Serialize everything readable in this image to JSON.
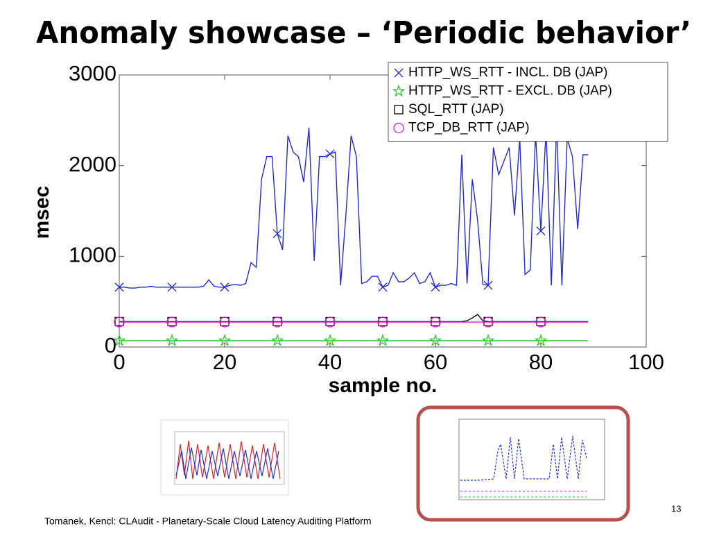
{
  "title": "Anomaly showcase – ‘Periodic behavior’",
  "footer": "Tomanek, Kencl: CLAudit - Planetary-Scale Cloud Latency Auditing Platform",
  "page_number": "13",
  "chart_data": {
    "type": "line",
    "xlabel": "sample no.",
    "ylabel": "msec",
    "xlim": [
      0,
      100
    ],
    "ylim": [
      0,
      3000
    ],
    "xticks": [
      0,
      20,
      40,
      60,
      80,
      100
    ],
    "yticks": [
      0,
      1000,
      2000,
      3000
    ],
    "legend": "upper right",
    "marker_every": 10,
    "x": [
      0,
      1,
      2,
      3,
      4,
      5,
      6,
      7,
      8,
      9,
      10,
      11,
      12,
      13,
      14,
      15,
      16,
      17,
      18,
      19,
      20,
      21,
      22,
      23,
      24,
      25,
      26,
      27,
      28,
      29,
      30,
      31,
      32,
      33,
      34,
      35,
      36,
      37,
      38,
      39,
      40,
      41,
      42,
      43,
      44,
      45,
      46,
      47,
      48,
      49,
      50,
      51,
      52,
      53,
      54,
      55,
      56,
      57,
      58,
      59,
      60,
      61,
      62,
      63,
      64,
      65,
      66,
      67,
      68,
      69,
      70,
      71,
      72,
      73,
      74,
      75,
      76,
      77,
      78,
      79,
      80,
      81,
      82,
      83,
      84,
      85,
      86,
      87,
      88,
      89
    ],
    "series": [
      {
        "name": "HTTP_WS_RTT - INCL. DB (JAP)",
        "color": "#1f2bd0",
        "marker": "x",
        "values": [
          660,
          660,
          650,
          650,
          660,
          660,
          670,
          660,
          660,
          660,
          660,
          660,
          660,
          660,
          660,
          660,
          670,
          740,
          670,
          660,
          660,
          680,
          690,
          680,
          700,
          930,
          880,
          1850,
          2100,
          2100,
          1250,
          1070,
          2330,
          2150,
          2100,
          1820,
          2420,
          950,
          2100,
          2100,
          2130,
          2150,
          680,
          1450,
          2330,
          2100,
          700,
          720,
          780,
          780,
          660,
          680,
          820,
          720,
          720,
          760,
          820,
          700,
          720,
          820,
          660,
          680,
          680,
          700,
          680,
          2120,
          700,
          1850,
          1400,
          690,
          680,
          2200,
          1900,
          2050,
          2200,
          1450,
          2300,
          800,
          850,
          2350,
          1280,
          2400,
          680,
          2450,
          680,
          2300,
          2100,
          1300,
          2120,
          2120
        ]
      },
      {
        "name": "HTTP_WS_RTT - EXCL. DB (JAP)",
        "color": "#22c02a",
        "marker": "star",
        "values": [
          70,
          70,
          70,
          70,
          70,
          70,
          70,
          70,
          70,
          70,
          70,
          70,
          70,
          70,
          70,
          70,
          70,
          70,
          70,
          70,
          70,
          70,
          70,
          70,
          70,
          70,
          70,
          70,
          70,
          70,
          70,
          70,
          70,
          70,
          70,
          70,
          70,
          70,
          70,
          70,
          70,
          70,
          70,
          70,
          70,
          70,
          70,
          70,
          70,
          70,
          70,
          70,
          70,
          70,
          70,
          70,
          70,
          70,
          70,
          70,
          70,
          70,
          70,
          70,
          70,
          70,
          70,
          70,
          70,
          70,
          70,
          70,
          70,
          70,
          70,
          70,
          70,
          70,
          70,
          70,
          70,
          70,
          70,
          70,
          70,
          70,
          70,
          70,
          70,
          70
        ]
      },
      {
        "name": "SQL_RTT (JAP)",
        "color": "#000000",
        "marker": "square",
        "values": [
          280,
          280,
          280,
          280,
          280,
          280,
          280,
          280,
          280,
          280,
          280,
          280,
          280,
          280,
          280,
          280,
          280,
          280,
          280,
          280,
          280,
          280,
          280,
          280,
          280,
          280,
          280,
          280,
          280,
          280,
          280,
          280,
          280,
          280,
          280,
          280,
          280,
          280,
          280,
          280,
          280,
          280,
          280,
          280,
          280,
          280,
          280,
          280,
          280,
          280,
          280,
          280,
          280,
          280,
          280,
          280,
          280,
          280,
          280,
          280,
          280,
          280,
          280,
          280,
          280,
          280,
          290,
          320,
          360,
          290,
          280,
          280,
          280,
          280,
          280,
          280,
          280,
          280,
          280,
          280,
          280,
          280,
          280,
          280,
          280,
          280,
          280,
          280,
          280,
          280
        ]
      },
      {
        "name": "TCP_DB_RTT (JAP)",
        "color": "#d21fc8",
        "marker": "circle",
        "values": [
          275,
          275,
          275,
          275,
          275,
          275,
          275,
          275,
          275,
          275,
          275,
          275,
          275,
          275,
          275,
          275,
          275,
          275,
          275,
          275,
          275,
          275,
          275,
          275,
          275,
          275,
          275,
          275,
          275,
          275,
          275,
          275,
          275,
          275,
          275,
          275,
          275,
          275,
          275,
          275,
          275,
          275,
          275,
          275,
          275,
          275,
          275,
          275,
          275,
          275,
          275,
          275,
          275,
          275,
          275,
          275,
          275,
          275,
          275,
          275,
          275,
          275,
          275,
          275,
          275,
          275,
          275,
          275,
          275,
          275,
          275,
          275,
          275,
          275,
          275,
          275,
          275,
          275,
          275,
          275,
          275,
          275,
          275,
          275,
          275,
          275,
          275,
          275,
          275,
          275
        ]
      }
    ]
  }
}
